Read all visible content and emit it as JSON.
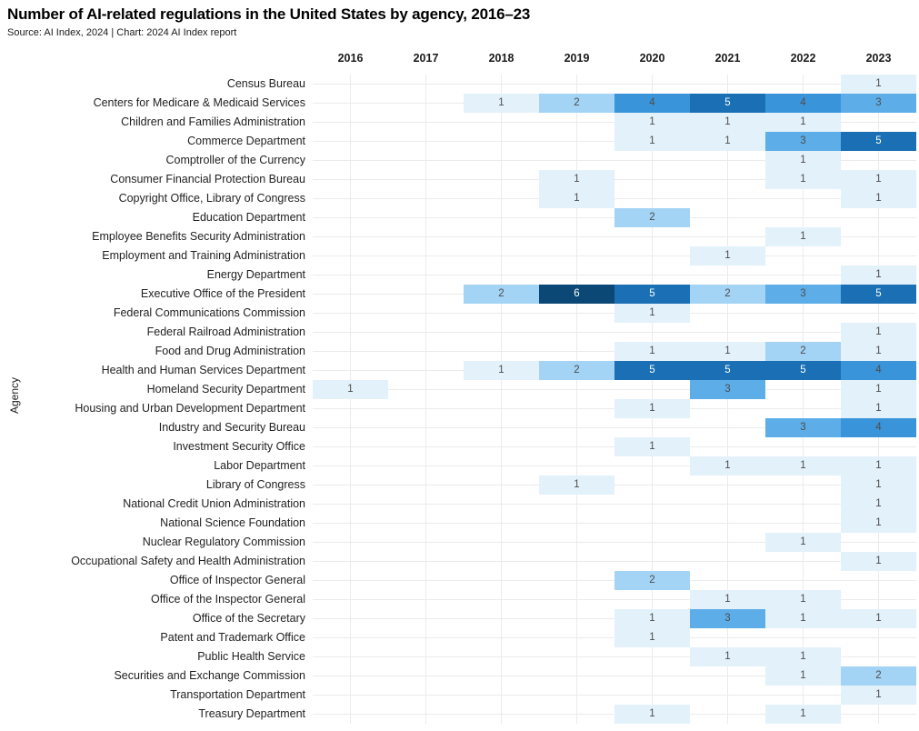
{
  "header": {
    "title": "Number of AI-related regulations in the United States by agency, 2016–23",
    "subtitle": "Source: AI Index, 2024 | Chart: 2024 AI Index report"
  },
  "chart_data": {
    "type": "heatmap",
    "title": "Number of AI-related regulations in the United States by agency, 2016–23",
    "xlabel": "",
    "ylabel": "Agency",
    "legend": "none",
    "grid": true,
    "x_axis_position": "top",
    "columns": [
      "2016",
      "2017",
      "2018",
      "2019",
      "2020",
      "2021",
      "2022",
      "2023"
    ],
    "rows": [
      {
        "label": "Census Bureau",
        "values": [
          0,
          0,
          0,
          0,
          0,
          0,
          0,
          1
        ]
      },
      {
        "label": "Centers for Medicare & Medicaid Services",
        "values": [
          0,
          0,
          1,
          2,
          4,
          5,
          4,
          3
        ]
      },
      {
        "label": "Children and Families Administration",
        "values": [
          0,
          0,
          0,
          0,
          1,
          1,
          1,
          0
        ]
      },
      {
        "label": "Commerce Department",
        "values": [
          0,
          0,
          0,
          0,
          1,
          1,
          3,
          5
        ]
      },
      {
        "label": "Comptroller of the Currency",
        "values": [
          0,
          0,
          0,
          0,
          0,
          0,
          1,
          0
        ]
      },
      {
        "label": "Consumer Financial Protection Bureau",
        "values": [
          0,
          0,
          0,
          1,
          0,
          0,
          1,
          1
        ]
      },
      {
        "label": "Copyright Office, Library of Congress",
        "values": [
          0,
          0,
          0,
          1,
          0,
          0,
          0,
          1
        ]
      },
      {
        "label": "Education Department",
        "values": [
          0,
          0,
          0,
          0,
          2,
          0,
          0,
          0
        ]
      },
      {
        "label": "Employee Benefits Security Administration",
        "values": [
          0,
          0,
          0,
          0,
          0,
          0,
          1,
          0
        ]
      },
      {
        "label": "Employment and Training Administration",
        "values": [
          0,
          0,
          0,
          0,
          0,
          1,
          0,
          0
        ]
      },
      {
        "label": "Energy Department",
        "values": [
          0,
          0,
          0,
          0,
          0,
          0,
          0,
          1
        ]
      },
      {
        "label": "Executive Office of the President",
        "values": [
          0,
          0,
          2,
          6,
          5,
          2,
          3,
          5
        ]
      },
      {
        "label": "Federal Communications Commission",
        "values": [
          0,
          0,
          0,
          0,
          1,
          0,
          0,
          0
        ]
      },
      {
        "label": "Federal Railroad Administration",
        "values": [
          0,
          0,
          0,
          0,
          0,
          0,
          0,
          1
        ]
      },
      {
        "label": "Food and Drug Administration",
        "values": [
          0,
          0,
          0,
          0,
          1,
          1,
          2,
          1
        ]
      },
      {
        "label": "Health and Human Services Department",
        "values": [
          0,
          0,
          1,
          2,
          5,
          5,
          5,
          4
        ]
      },
      {
        "label": "Homeland Security Department",
        "values": [
          1,
          0,
          0,
          0,
          0,
          3,
          0,
          1
        ]
      },
      {
        "label": "Housing and Urban Development Department",
        "values": [
          0,
          0,
          0,
          0,
          1,
          0,
          0,
          1
        ]
      },
      {
        "label": "Industry and Security Bureau",
        "values": [
          0,
          0,
          0,
          0,
          0,
          0,
          3,
          4
        ]
      },
      {
        "label": "Investment Security Office",
        "values": [
          0,
          0,
          0,
          0,
          1,
          0,
          0,
          0
        ]
      },
      {
        "label": "Labor Department",
        "values": [
          0,
          0,
          0,
          0,
          0,
          1,
          1,
          1
        ]
      },
      {
        "label": "Library of Congress",
        "values": [
          0,
          0,
          0,
          1,
          0,
          0,
          0,
          1
        ]
      },
      {
        "label": "National Credit Union Administration",
        "values": [
          0,
          0,
          0,
          0,
          0,
          0,
          0,
          1
        ]
      },
      {
        "label": "National Science Foundation",
        "values": [
          0,
          0,
          0,
          0,
          0,
          0,
          0,
          1
        ]
      },
      {
        "label": "Nuclear Regulatory Commission",
        "values": [
          0,
          0,
          0,
          0,
          0,
          0,
          1,
          0
        ]
      },
      {
        "label": "Occupational Safety and Health Administration",
        "values": [
          0,
          0,
          0,
          0,
          0,
          0,
          0,
          1
        ]
      },
      {
        "label": "Office of Inspector General",
        "values": [
          0,
          0,
          0,
          0,
          2,
          0,
          0,
          0
        ]
      },
      {
        "label": "Office of the Inspector General",
        "values": [
          0,
          0,
          0,
          0,
          0,
          1,
          1,
          0
        ]
      },
      {
        "label": "Office of the Secretary",
        "values": [
          0,
          0,
          0,
          0,
          1,
          3,
          1,
          1
        ]
      },
      {
        "label": "Patent and Trademark Office",
        "values": [
          0,
          0,
          0,
          0,
          1,
          0,
          0,
          0
        ]
      },
      {
        "label": "Public Health Service",
        "values": [
          0,
          0,
          0,
          0,
          0,
          1,
          1,
          0
        ]
      },
      {
        "label": "Securities and Exchange Commission",
        "values": [
          0,
          0,
          0,
          0,
          0,
          0,
          1,
          2
        ]
      },
      {
        "label": "Transportation Department",
        "values": [
          0,
          0,
          0,
          0,
          0,
          0,
          0,
          1
        ]
      },
      {
        "label": "Treasury Department",
        "values": [
          0,
          0,
          0,
          0,
          1,
          0,
          1,
          0
        ]
      }
    ],
    "color_scale": {
      "1": "#e3f1fb",
      "2": "#a3d3f5",
      "3": "#5dade8",
      "4": "#3a94da",
      "5": "#1a6fb5",
      "6": "#0b4876"
    },
    "white_text_from": 5,
    "cell_text_color_light": "#4d4d4d",
    "cell_text_color_dark": "#ffffff"
  }
}
